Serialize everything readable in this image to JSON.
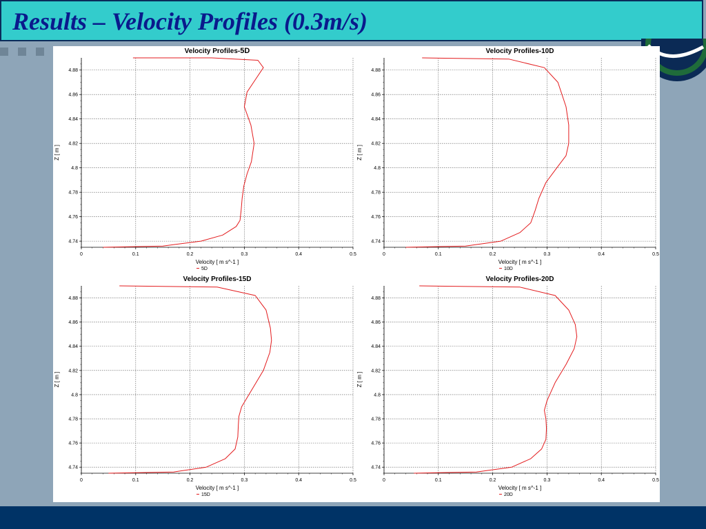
{
  "slide": {
    "title": "Results – Velocity Profiles (0.3m/s)"
  },
  "chart_data": [
    {
      "type": "line",
      "title": "Velocity Profiles-",
      "title_emphasis": "5D",
      "xlabel": "Velocity [ m s^-1 ]",
      "ylabel": "Z [ m ]",
      "xlim": [
        0,
        0.5
      ],
      "ylim": [
        4.735,
        4.89
      ],
      "xticks": [
        "0",
        "0.1",
        "0.2",
        "0.3",
        "0.4",
        "0.5"
      ],
      "yticks": [
        "4.74",
        "4.76",
        "4.78",
        "4.8",
        "4.82",
        "4.84",
        "4.86",
        "4.88"
      ],
      "grid": true,
      "legend": "bottom-center",
      "series": [
        {
          "name": "5D",
          "color": "#e31a1c",
          "x": [
            0.04,
            0.15,
            0.22,
            0.26,
            0.285,
            0.292,
            0.294,
            0.296,
            0.299,
            0.305,
            0.313,
            0.318,
            0.312,
            0.3,
            0.305,
            0.32,
            0.335,
            0.325,
            0.24,
            0.095
          ],
          "y": [
            4.735,
            4.736,
            4.74,
            4.745,
            4.752,
            4.757,
            4.765,
            4.775,
            4.785,
            4.795,
            4.805,
            4.82,
            4.835,
            4.85,
            4.862,
            4.872,
            4.882,
            4.888,
            4.89,
            4.89
          ]
        }
      ]
    },
    {
      "type": "line",
      "title": "Velocity Profiles-10D",
      "title_emphasis": "",
      "xlabel": "Velocity [ m s^-1 ]",
      "ylabel": "Z [ m ]",
      "xlim": [
        0,
        0.5
      ],
      "ylim": [
        4.735,
        4.89
      ],
      "xticks": [
        "0",
        "0.1",
        "0.2",
        "0.3",
        "0.4",
        "0.5"
      ],
      "yticks": [
        "4.74",
        "4.76",
        "4.78",
        "4.8",
        "4.82",
        "4.84",
        "4.86",
        "4.88"
      ],
      "grid": true,
      "legend": "bottom-center",
      "series": [
        {
          "name": "10D",
          "color": "#e31a1c",
          "x": [
            0.04,
            0.15,
            0.215,
            0.25,
            0.27,
            0.278,
            0.285,
            0.298,
            0.318,
            0.335,
            0.34,
            0.34,
            0.335,
            0.32,
            0.295,
            0.23,
            0.07
          ],
          "y": [
            4.735,
            4.736,
            4.74,
            4.747,
            4.755,
            4.765,
            4.775,
            4.788,
            4.8,
            4.81,
            4.82,
            4.835,
            4.85,
            4.87,
            4.882,
            4.889,
            4.89
          ]
        }
      ]
    },
    {
      "type": "line",
      "title": "Velocity Profiles-15D",
      "title_emphasis": "",
      "xlabel": "Velocity [ m s^-1 ]",
      "ylabel": "Z [ m ]",
      "xlim": [
        0,
        0.5
      ],
      "ylim": [
        4.735,
        4.89
      ],
      "xticks": [
        "0",
        "0.1",
        "0.2",
        "0.3",
        "0.4",
        "0.5"
      ],
      "yticks": [
        "4.74",
        "4.76",
        "4.78",
        "4.8",
        "4.82",
        "4.84",
        "4.86",
        "4.88"
      ],
      "grid": true,
      "legend": "bottom-center",
      "series": [
        {
          "name": "15D",
          "color": "#e31a1c",
          "x": [
            0.05,
            0.17,
            0.23,
            0.265,
            0.283,
            0.288,
            0.289,
            0.29,
            0.295,
            0.315,
            0.335,
            0.347,
            0.35,
            0.348,
            0.34,
            0.32,
            0.25,
            0.07
          ],
          "y": [
            4.735,
            4.736,
            4.74,
            4.747,
            4.755,
            4.765,
            4.775,
            4.782,
            4.79,
            4.805,
            4.82,
            4.835,
            4.845,
            4.855,
            4.87,
            4.882,
            4.889,
            4.89
          ]
        }
      ]
    },
    {
      "type": "line",
      "title": "Velocity Profiles-20D",
      "title_emphasis": "",
      "xlabel": "Velocity [ m s^-1 ]",
      "ylabel": "Z [ m ]",
      "xlim": [
        0,
        0.5
      ],
      "ylim": [
        4.735,
        4.89
      ],
      "xticks": [
        "0",
        "0.1",
        "0.2",
        "0.3",
        "0.4",
        "0.5"
      ],
      "yticks": [
        "4.74",
        "4.76",
        "4.78",
        "4.8",
        "4.82",
        "4.84",
        "4.86",
        "4.88"
      ],
      "grid": true,
      "legend": "bottom-center",
      "series": [
        {
          "name": "20D",
          "color": "#e31a1c",
          "x": [
            0.055,
            0.17,
            0.235,
            0.27,
            0.29,
            0.298,
            0.299,
            0.298,
            0.295,
            0.3,
            0.315,
            0.335,
            0.35,
            0.355,
            0.352,
            0.34,
            0.315,
            0.25,
            0.065
          ],
          "y": [
            4.735,
            4.736,
            4.74,
            4.747,
            4.755,
            4.763,
            4.772,
            4.78,
            4.787,
            4.795,
            4.81,
            4.825,
            4.838,
            4.848,
            4.858,
            4.87,
            4.882,
            4.889,
            4.89
          ]
        }
      ]
    }
  ]
}
